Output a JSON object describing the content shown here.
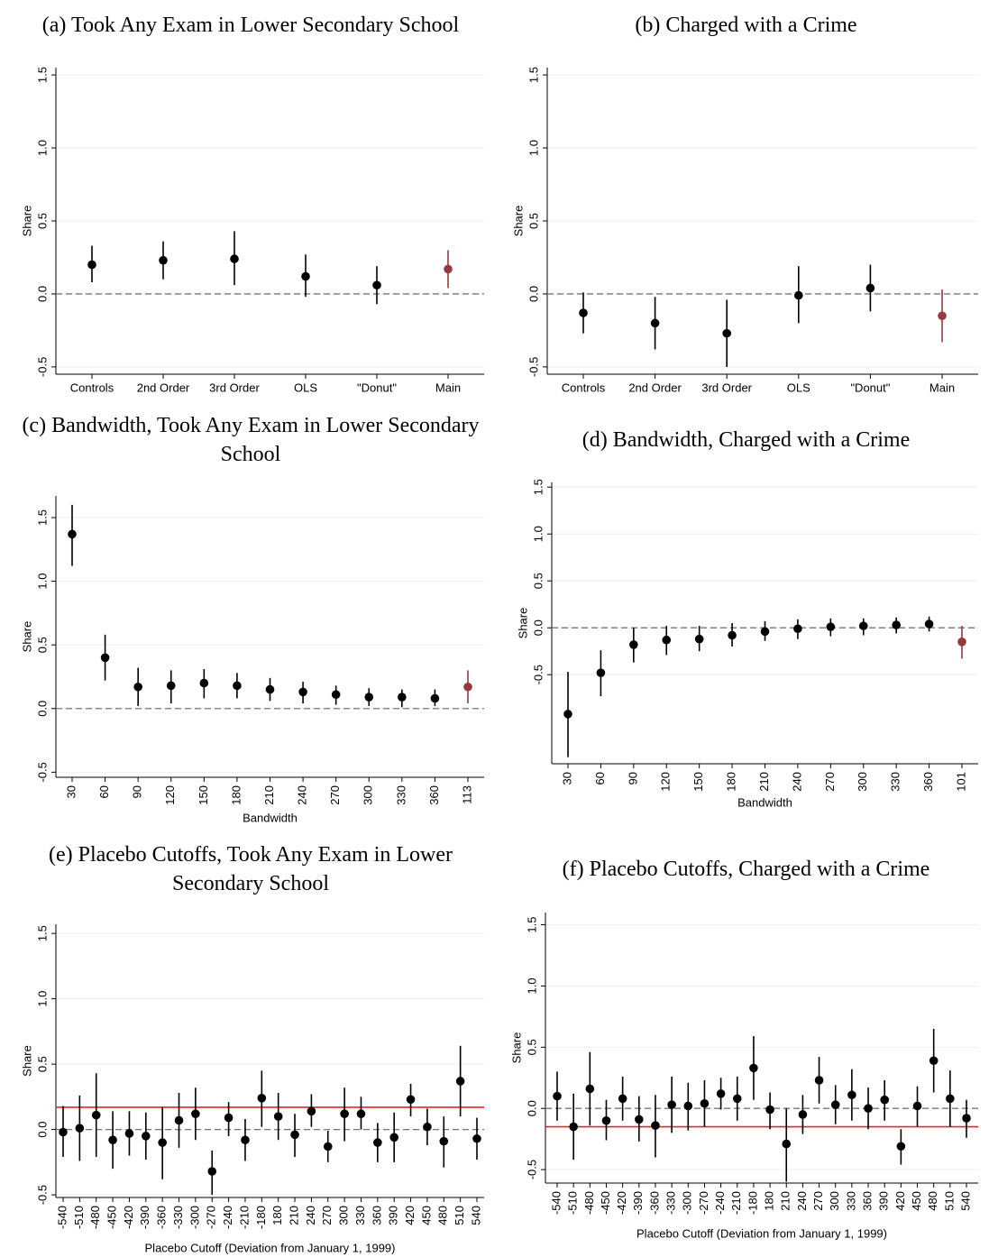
{
  "chart_data": [
    {
      "type": "errorbar",
      "title": "(a) Took Any Exam in Lower Secondary School",
      "y_label": "Share",
      "categories": [
        "Controls",
        "2nd Order",
        "3rd Order",
        "OLS",
        "\"Donut\"",
        "Main"
      ],
      "values": [
        0.2,
        0.23,
        0.24,
        0.12,
        0.06,
        0.17
      ],
      "lower": [
        0.08,
        0.1,
        0.06,
        -0.02,
        -0.07,
        0.04
      ],
      "upper": [
        0.33,
        0.36,
        0.43,
        0.27,
        0.19,
        0.3
      ],
      "point_colors": [
        "#000000",
        "#000000",
        "#000000",
        "#000000",
        "#000000",
        "#953a40"
      ],
      "ylim": [
        -0.55,
        1.55
      ],
      "yticks": [
        -0.5,
        {
          "value": 0,
          "label": "0.0"
        },
        0.5,
        {
          "value": 1,
          "label": "1.0"
        },
        1.5
      ],
      "grid": true,
      "hlines": [
        {
          "value": 0,
          "color": "#777777",
          "dashed": true
        }
      ]
    },
    {
      "type": "errorbar",
      "title": "(b) Charged with a Crime",
      "y_label": "Share",
      "categories": [
        "Controls",
        "2nd Order",
        "3rd Order",
        "OLS",
        "\"Donut\"",
        "Main"
      ],
      "values": [
        -0.13,
        -0.2,
        -0.27,
        -0.01,
        0.04,
        -0.15
      ],
      "lower": [
        -0.27,
        -0.38,
        -0.5,
        -0.2,
        -0.12,
        -0.33
      ],
      "upper": [
        0.01,
        -0.02,
        -0.04,
        0.19,
        0.2,
        0.03
      ],
      "point_colors": [
        "#000000",
        "#000000",
        "#000000",
        "#000000",
        "#000000",
        "#953a40"
      ],
      "ylim": [
        -0.55,
        1.55
      ],
      "yticks": [
        -0.5,
        {
          "value": 0,
          "label": "0.0"
        },
        0.5,
        {
          "value": 1,
          "label": "1.0"
        },
        1.5
      ],
      "grid": true,
      "hlines": [
        {
          "value": 0,
          "color": "#777777",
          "dashed": true
        }
      ]
    },
    {
      "type": "errorbar",
      "title": "(c) Bandwidth, Took Any Exam in Lower Secondary School",
      "y_label": "Share",
      "x_label": "Bandwidth",
      "categories": [
        "30",
        "60",
        "90",
        "120",
        "150",
        "180",
        "210",
        "240",
        "270",
        "300",
        "330",
        "360",
        "113"
      ],
      "values": [
        1.37,
        0.4,
        0.17,
        0.18,
        0.2,
        0.18,
        0.15,
        0.13,
        0.11,
        0.09,
        0.09,
        0.08,
        0.17
      ],
      "lower": [
        1.12,
        0.22,
        0.02,
        0.04,
        0.08,
        0.08,
        0.06,
        0.04,
        0.03,
        0.02,
        0.01,
        0.02,
        0.04
      ],
      "upper": [
        1.6,
        0.58,
        0.32,
        0.3,
        0.31,
        0.28,
        0.24,
        0.21,
        0.18,
        0.16,
        0.15,
        0.15,
        0.3
      ],
      "point_colors": [
        "#000000",
        "#000000",
        "#000000",
        "#000000",
        "#000000",
        "#000000",
        "#000000",
        "#000000",
        "#000000",
        "#000000",
        "#000000",
        "#000000",
        "#953a40"
      ],
      "ylim": [
        -0.54,
        1.67
      ],
      "yticks": [
        -0.5,
        {
          "value": 0,
          "label": "0.0"
        },
        0.5,
        {
          "value": 1,
          "label": "1.0"
        },
        1.5
      ],
      "grid": true,
      "hlines": [
        {
          "value": 0,
          "color": "#777777",
          "dashed": true
        }
      ]
    },
    {
      "type": "errorbar",
      "title": "(d) Bandwidth, Charged with a Crime",
      "y_label": "Share",
      "x_label": "Bandwidth",
      "categories": [
        "30",
        "60",
        "90",
        "120",
        "150",
        "180",
        "210",
        "240",
        "270",
        "300",
        "330",
        "360",
        "101"
      ],
      "values": [
        -0.92,
        -0.48,
        -0.18,
        -0.13,
        -0.12,
        -0.08,
        -0.04,
        -0.01,
        0.01,
        0.02,
        0.03,
        0.04,
        -0.15
      ],
      "lower": [
        -1.38,
        -0.73,
        -0.37,
        -0.29,
        -0.25,
        -0.2,
        -0.14,
        -0.12,
        -0.09,
        -0.08,
        -0.06,
        -0.04,
        -0.33
      ],
      "upper": [
        -0.47,
        -0.24,
        0.0,
        0.02,
        0.02,
        0.05,
        0.07,
        0.09,
        0.1,
        0.1,
        0.11,
        0.12,
        0.02
      ],
      "point_colors": [
        "#000000",
        "#000000",
        "#000000",
        "#000000",
        "#000000",
        "#000000",
        "#000000",
        "#000000",
        "#000000",
        "#000000",
        "#000000",
        "#000000",
        "#953a40"
      ],
      "ylim": [
        -1.45,
        1.55
      ],
      "yticks": [
        -0.5,
        {
          "value": 0,
          "label": "0.0"
        },
        0.5,
        {
          "value": 1,
          "label": "1.0"
        },
        1.5
      ],
      "grid": true,
      "hlines": [
        {
          "value": 0,
          "color": "#777777",
          "dashed": true
        }
      ]
    },
    {
      "type": "errorbar",
      "title": "(e) Placebo Cutoffs, Took Any Exam in Lower Secondary School",
      "y_label": "Share",
      "x_label": "Placebo Cutoff (Deviation from January 1, 1999)",
      "categories": [
        "-540",
        "-510",
        "-480",
        "-450",
        "-420",
        "-390",
        "-360",
        "-330",
        "-300",
        "-270",
        "-240",
        "-210",
        "-180",
        "180",
        "210",
        "240",
        "270",
        "300",
        "330",
        "360",
        "390",
        "420",
        "450",
        "480",
        "510",
        "540"
      ],
      "values": [
        -0.02,
        0.01,
        0.11,
        -0.08,
        -0.03,
        -0.05,
        -0.1,
        0.07,
        0.12,
        -0.32,
        0.09,
        -0.08,
        0.24,
        0.1,
        -0.04,
        0.14,
        -0.13,
        0.12,
        0.12,
        -0.1,
        -0.06,
        0.23,
        0.02,
        -0.09,
        0.37,
        -0.07
      ],
      "lower": [
        -0.21,
        -0.24,
        -0.21,
        -0.3,
        -0.2,
        -0.23,
        -0.38,
        -0.14,
        -0.08,
        -0.5,
        -0.05,
        -0.24,
        0.02,
        -0.08,
        -0.21,
        0.02,
        -0.25,
        -0.09,
        0.0,
        -0.25,
        -0.25,
        0.1,
        -0.12,
        -0.29,
        0.1,
        -0.23
      ],
      "upper": [
        0.18,
        0.26,
        0.43,
        0.14,
        0.14,
        0.13,
        0.17,
        0.28,
        0.32,
        -0.16,
        0.21,
        0.08,
        0.45,
        0.28,
        0.12,
        0.27,
        -0.01,
        0.32,
        0.25,
        0.05,
        0.13,
        0.35,
        0.16,
        0.1,
        0.64,
        0.09
      ],
      "point_colors": [
        "#000000",
        "#000000",
        "#000000",
        "#000000",
        "#000000",
        "#000000",
        "#000000",
        "#000000",
        "#000000",
        "#000000",
        "#000000",
        "#000000",
        "#000000",
        "#000000",
        "#000000",
        "#000000",
        "#000000",
        "#000000",
        "#000000",
        "#000000",
        "#000000",
        "#000000",
        "#000000",
        "#000000",
        "#000000",
        "#000000"
      ],
      "ylim": [
        -0.52,
        1.57
      ],
      "yticks": [
        -0.5,
        {
          "value": 0,
          "label": "0.0"
        },
        0.5,
        {
          "value": 1,
          "label": "1.0"
        },
        1.5
      ],
      "grid": true,
      "hlines": [
        {
          "value": 0,
          "color": "#777777",
          "dashed": true
        },
        {
          "value": 0.17,
          "color": "#ee2222",
          "dashed": false
        }
      ]
    },
    {
      "type": "errorbar",
      "title": "(f) Placebo Cutoffs, Charged with a Crime",
      "y_label": "Share",
      "x_label": "Placebo Cutoff (Deviation from January 1, 1999)",
      "categories": [
        "-540",
        "-510",
        "-480",
        "-450",
        "-420",
        "-390",
        "-360",
        "-330",
        "-300",
        "-270",
        "-240",
        "-210",
        "-180",
        "180",
        "210",
        "240",
        "270",
        "300",
        "330",
        "360",
        "390",
        "420",
        "450",
        "480",
        "510",
        "540"
      ],
      "values": [
        0.1,
        -0.15,
        0.16,
        -0.1,
        0.08,
        -0.09,
        -0.14,
        0.03,
        0.02,
        0.04,
        0.12,
        0.08,
        0.33,
        -0.01,
        -0.29,
        -0.05,
        0.23,
        0.03,
        0.11,
        0.0,
        0.07,
        -0.31,
        0.02,
        0.39,
        0.08,
        -0.08
      ],
      "lower": [
        -0.1,
        -0.42,
        -0.14,
        -0.26,
        -0.1,
        -0.27,
        -0.4,
        -0.2,
        -0.18,
        -0.15,
        -0.01,
        -0.1,
        0.07,
        -0.17,
        -0.6,
        -0.21,
        0.04,
        -0.13,
        -0.1,
        -0.17,
        -0.1,
        -0.46,
        -0.15,
        0.13,
        -0.15,
        -0.24
      ],
      "upper": [
        0.3,
        0.12,
        0.46,
        0.07,
        0.26,
        0.1,
        0.11,
        0.26,
        0.21,
        0.23,
        0.25,
        0.26,
        0.59,
        0.13,
        0.0,
        0.11,
        0.42,
        0.19,
        0.32,
        0.17,
        0.23,
        -0.17,
        0.18,
        0.65,
        0.31,
        0.07
      ],
      "point_colors": [
        "#000000",
        "#000000",
        "#000000",
        "#000000",
        "#000000",
        "#000000",
        "#000000",
        "#000000",
        "#000000",
        "#000000",
        "#000000",
        "#000000",
        "#000000",
        "#000000",
        "#000000",
        "#000000",
        "#000000",
        "#000000",
        "#000000",
        "#000000",
        "#000000",
        "#000000",
        "#000000",
        "#000000",
        "#000000",
        "#000000"
      ],
      "ylim": [
        -0.61,
        1.6
      ],
      "yticks": [
        -0.5,
        {
          "value": 0,
          "label": "0.0"
        },
        0.5,
        {
          "value": 1,
          "label": "1.0"
        },
        1.5
      ],
      "grid": true,
      "hlines": [
        {
          "value": 0,
          "color": "#777777",
          "dashed": true
        },
        {
          "value": -0.15,
          "color": "#ee2222",
          "dashed": false
        }
      ]
    }
  ]
}
